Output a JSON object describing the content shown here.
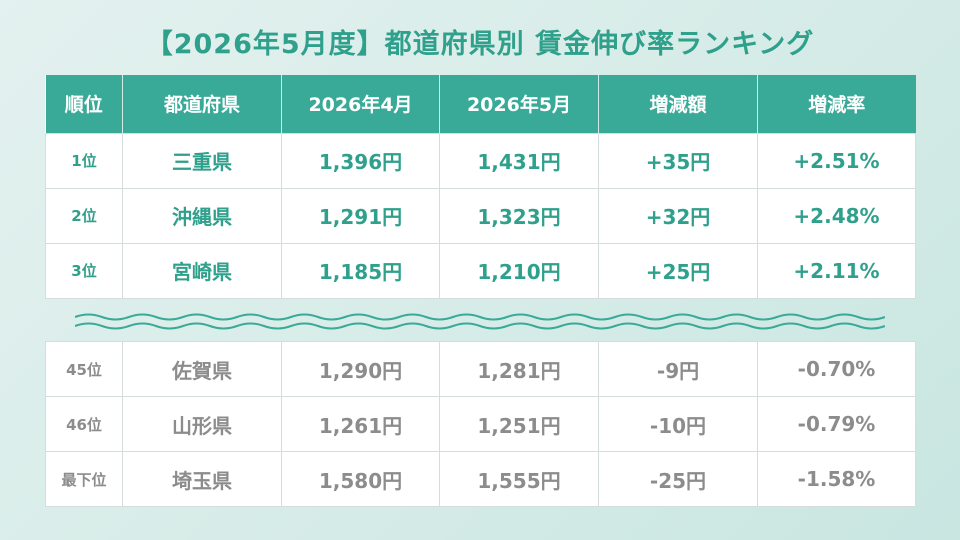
{
  "title": "【2026年5月度】都道府県別 賃金伸び率ランキング",
  "headers": [
    "順位",
    "都道府県",
    "2026年4月",
    "2026年5月",
    "増減額",
    "増減率"
  ],
  "top_rows": [
    {
      "rank": "1位",
      "pref": "三重県",
      "apr": "1,396円",
      "may": "1,431円",
      "diff": "+35円",
      "rate": "+2.51%"
    },
    {
      "rank": "2位",
      "pref": "沖縄県",
      "apr": "1,291円",
      "may": "1,323円",
      "diff": "+32円",
      "rate": "+2.48%"
    },
    {
      "rank": "3位",
      "pref": "宮崎県",
      "apr": "1,185円",
      "may": "1,210円",
      "diff": "+25円",
      "rate": "+2.11%"
    }
  ],
  "bottom_rows": [
    {
      "rank": "45位",
      "pref": "佐賀県",
      "apr": "1,290円",
      "may": "1,281円",
      "diff": "-9円",
      "rate": "-0.70%"
    },
    {
      "rank": "46位",
      "pref": "山形県",
      "apr": "1,261円",
      "may": "1,251円",
      "diff": "-10円",
      "rate": "-0.79%"
    },
    {
      "rank": "最下位",
      "pref": "埼玉県",
      "apr": "1,580円",
      "may": "1,555円",
      "diff": "-25円",
      "rate": "-1.58%"
    }
  ],
  "colors": {
    "accent": "#3aaa98",
    "title": "#2fa08c",
    "muted": "#8c8c8c"
  }
}
